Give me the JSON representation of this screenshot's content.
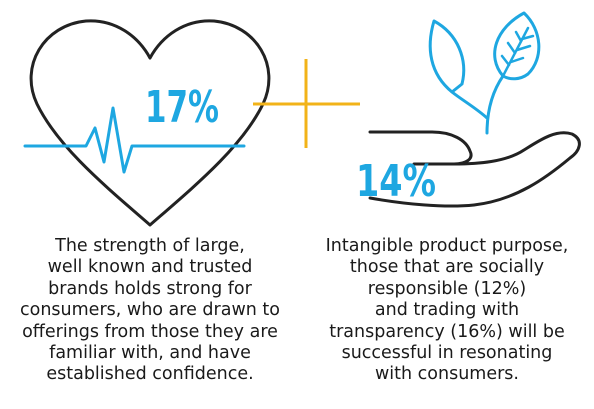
{
  "left": {
    "stat": "17%",
    "icon": "heart-pulse-icon",
    "caption_lines": [
      "The strength of large,",
      "well known and trusted",
      "brands holds strong for",
      "consumers, who are drawn to",
      "offerings from those they are",
      "familiar with, and have",
      "established confidence."
    ]
  },
  "plus_icon": "plus-icon",
  "right": {
    "stat": "14%",
    "icon": "hand-with-plant-icon",
    "caption_lines": [
      "Intangible product purpose,",
      "those that are socially",
      "responsible (12%)",
      "and trading with",
      "transparency (16%) will be",
      "successful in resonating",
      "with consumers."
    ]
  },
  "colors": {
    "line": "#222222",
    "accent_blue": "#1ea7e1",
    "accent_yellow": "#f2b318",
    "text": "#1a1a1a"
  }
}
